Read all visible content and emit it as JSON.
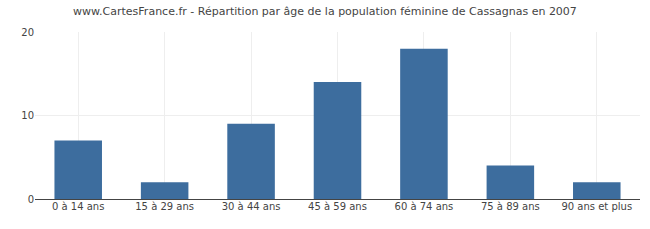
{
  "chart_data": {
    "type": "bar",
    "title": "www.CartesFrance.fr - Répartition par âge de la population féminine de Cassagnas en 2007",
    "categories": [
      "0 à 14 ans",
      "15 à 29 ans",
      "30 à 44 ans",
      "45 à 59 ans",
      "60 à 74 ans",
      "75 à 89 ans",
      "90 ans et plus"
    ],
    "values": [
      7,
      2,
      9,
      14,
      18,
      4,
      2
    ],
    "color": "#3d6d9e",
    "ylim": [
      0,
      20
    ],
    "yticks": [
      0,
      10,
      20
    ],
    "grid": true
  }
}
